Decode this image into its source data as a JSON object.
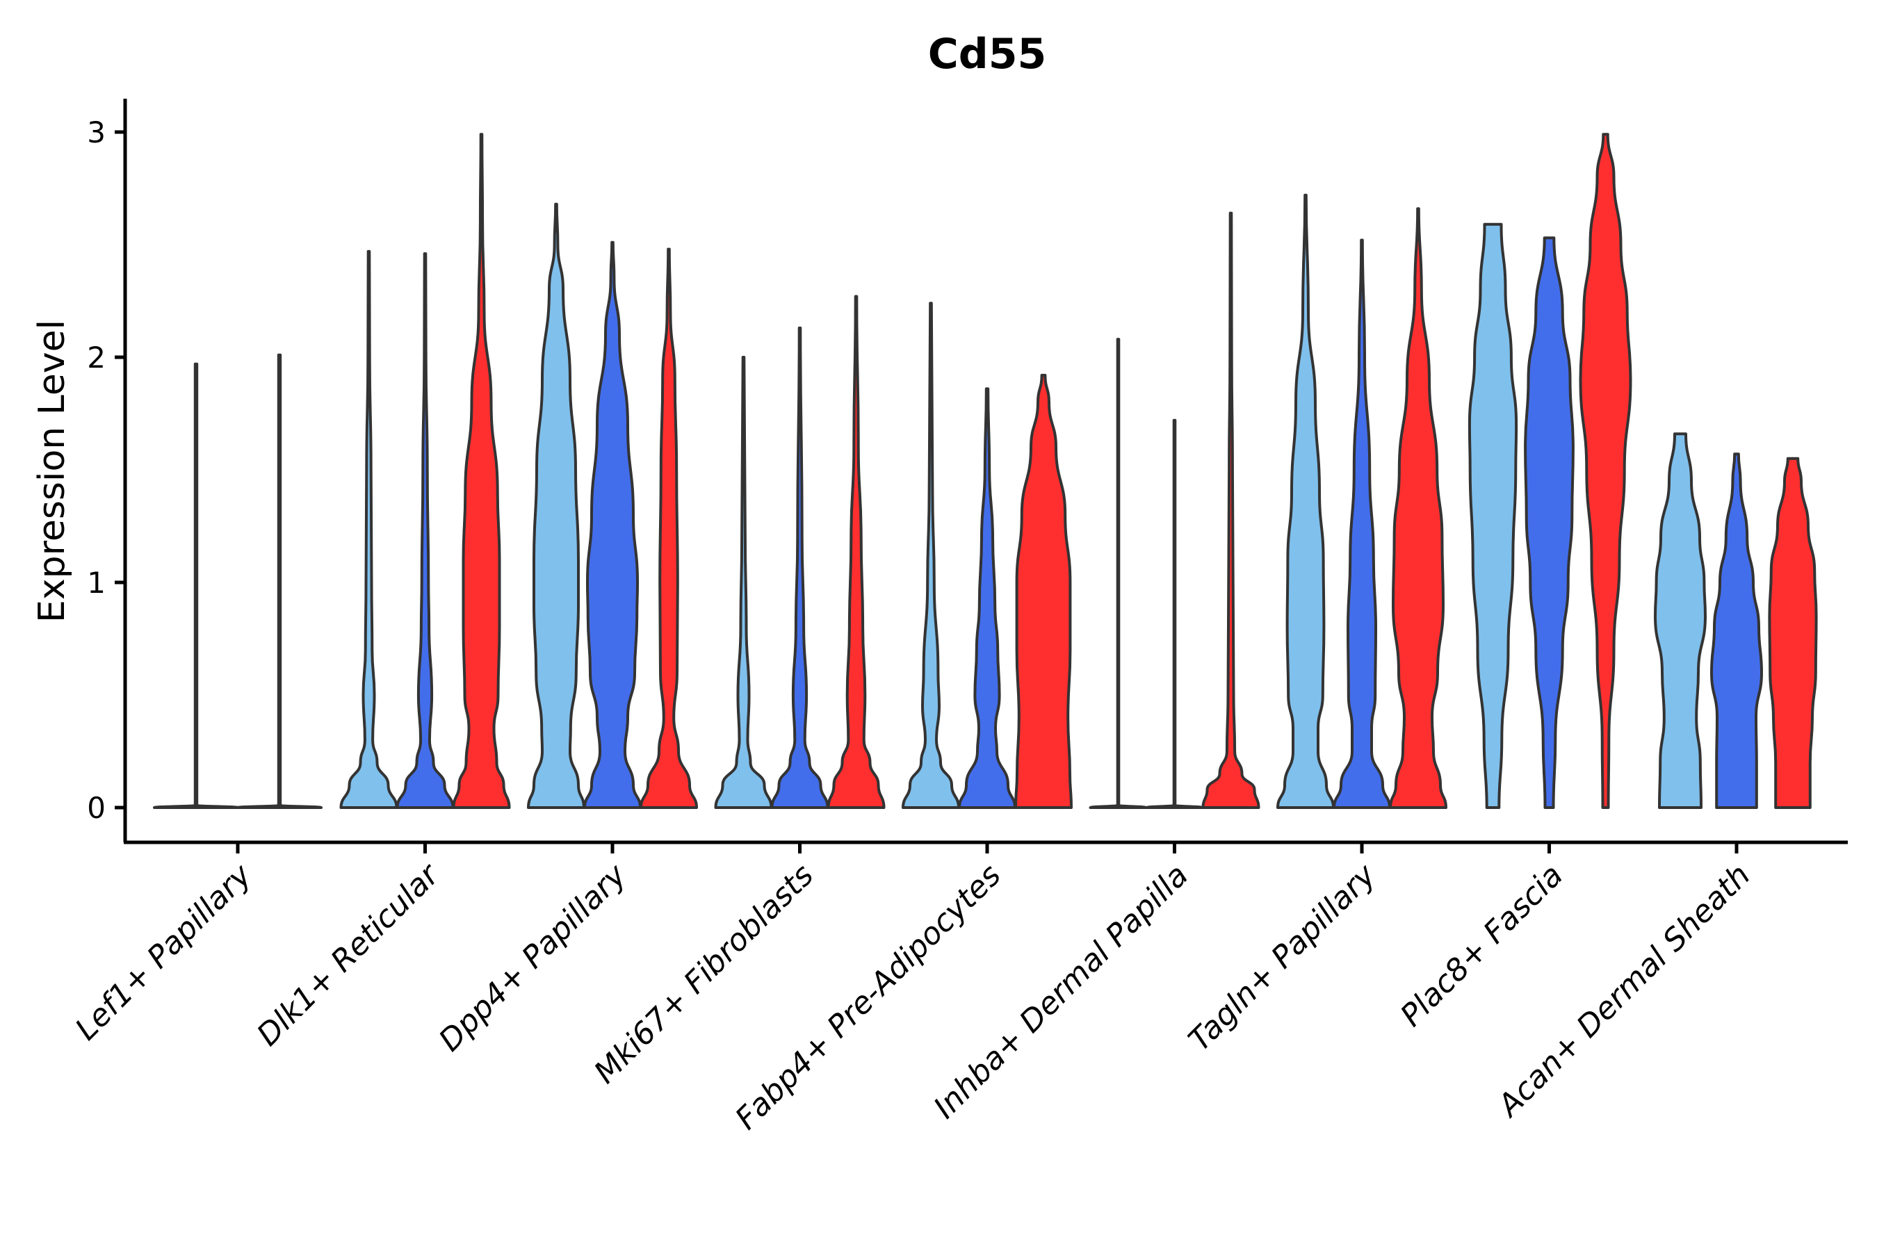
{
  "chart_data": {
    "type": "violin",
    "title": "Cd55",
    "xlabel": "",
    "ylabel": "Expression Level",
    "ylim": [
      -0.15,
      3.15
    ],
    "yticks": [
      0,
      1,
      2,
      3
    ],
    "ytick_labels": [
      "0",
      "1",
      "2",
      "3"
    ],
    "grid": false,
    "legend": "none",
    "series_colors": {
      "group1": "#80C0EC",
      "group2": "#436EEB",
      "group3": "#FF2F30",
      "flat": "#FFFFFF",
      "outline": "#333333"
    },
    "categories": [
      "Lef1+ Papillary",
      "Dlk1+ Reticular",
      "Dpp4+ Papillary",
      "Mki67+ Fibroblasts",
      "Fabp4+ Pre-Adipocytes",
      "Inhba+ Dermal Papilla",
      "Tagln+ Papillary",
      "Plac8+ Fascia",
      "Acan+ Dermal Sheath"
    ],
    "violins": [
      [
        {
          "series": "flat",
          "max": 1.97,
          "profile": [
            [
              0,
              1
            ],
            [
              0.01,
              0.02
            ],
            [
              1.97,
              0.02
            ]
          ]
        },
        {
          "series": "flat",
          "max": 2.01,
          "profile": [
            [
              0,
              1
            ],
            [
              0.01,
              0.02
            ],
            [
              2.01,
              0.02
            ]
          ]
        }
      ],
      [
        {
          "series": "group1",
          "max": 2.47,
          "profile": [
            [
              0,
              1
            ],
            [
              0.1,
              0.7
            ],
            [
              0.2,
              0.3
            ],
            [
              0.3,
              0.14
            ],
            [
              0.5,
              0.2
            ],
            [
              0.7,
              0.12
            ],
            [
              1.0,
              0.1
            ],
            [
              1.5,
              0.08
            ],
            [
              2.0,
              0.03
            ],
            [
              2.47,
              0.02
            ]
          ]
        },
        {
          "series": "group2",
          "max": 2.46,
          "profile": [
            [
              0,
              1
            ],
            [
              0.1,
              0.7
            ],
            [
              0.2,
              0.3
            ],
            [
              0.3,
              0.16
            ],
            [
              0.5,
              0.24
            ],
            [
              0.8,
              0.14
            ],
            [
              1.0,
              0.12
            ],
            [
              1.5,
              0.08
            ],
            [
              2.0,
              0.03
            ],
            [
              2.46,
              0.02
            ]
          ]
        },
        {
          "series": "group3",
          "max": 2.99,
          "profile": [
            [
              0,
              1
            ],
            [
              0.1,
              0.8
            ],
            [
              0.2,
              0.55
            ],
            [
              0.35,
              0.45
            ],
            [
              0.5,
              0.6
            ],
            [
              0.8,
              0.65
            ],
            [
              1.1,
              0.65
            ],
            [
              1.4,
              0.58
            ],
            [
              1.8,
              0.35
            ],
            [
              2.2,
              0.1
            ],
            [
              2.6,
              0.04
            ],
            [
              2.99,
              0.02
            ]
          ]
        }
      ],
      [
        {
          "series": "group1",
          "max": 2.68,
          "profile": [
            [
              0,
              1
            ],
            [
              0.1,
              0.8
            ],
            [
              0.25,
              0.5
            ],
            [
              0.35,
              0.52
            ],
            [
              0.6,
              0.72
            ],
            [
              0.9,
              0.8
            ],
            [
              1.1,
              0.8
            ],
            [
              1.5,
              0.7
            ],
            [
              1.9,
              0.5
            ],
            [
              2.3,
              0.25
            ],
            [
              2.5,
              0.06
            ],
            [
              2.68,
              0.02
            ]
          ]
        },
        {
          "series": "group2",
          "max": 2.51,
          "profile": [
            [
              0,
              1
            ],
            [
              0.1,
              0.75
            ],
            [
              0.25,
              0.45
            ],
            [
              0.4,
              0.55
            ],
            [
              0.6,
              0.8
            ],
            [
              0.85,
              0.88
            ],
            [
              1.0,
              0.9
            ],
            [
              1.3,
              0.75
            ],
            [
              1.7,
              0.55
            ],
            [
              2.1,
              0.25
            ],
            [
              2.35,
              0.06
            ],
            [
              2.51,
              0.02
            ]
          ]
        },
        {
          "series": "group3",
          "max": 2.48,
          "profile": [
            [
              0,
              1
            ],
            [
              0.1,
              0.75
            ],
            [
              0.25,
              0.35
            ],
            [
              0.4,
              0.18
            ],
            [
              0.6,
              0.3
            ],
            [
              1.0,
              0.32
            ],
            [
              1.5,
              0.28
            ],
            [
              1.9,
              0.22
            ],
            [
              2.2,
              0.06
            ],
            [
              2.48,
              0.02
            ]
          ]
        }
      ],
      [
        {
          "series": "group1",
          "max": 2.0,
          "profile": [
            [
              0,
              1
            ],
            [
              0.1,
              0.75
            ],
            [
              0.2,
              0.25
            ],
            [
              0.3,
              0.15
            ],
            [
              0.5,
              0.2
            ],
            [
              0.8,
              0.1
            ],
            [
              1.2,
              0.06
            ],
            [
              2.0,
              0.02
            ]
          ]
        },
        {
          "series": "group2",
          "max": 2.13,
          "profile": [
            [
              0,
              1
            ],
            [
              0.1,
              0.75
            ],
            [
              0.2,
              0.35
            ],
            [
              0.3,
              0.18
            ],
            [
              0.5,
              0.24
            ],
            [
              0.8,
              0.14
            ],
            [
              1.2,
              0.08
            ],
            [
              2.13,
              0.02
            ]
          ]
        },
        {
          "series": "group3",
          "max": 2.27,
          "profile": [
            [
              0,
              1
            ],
            [
              0.1,
              0.8
            ],
            [
              0.2,
              0.5
            ],
            [
              0.3,
              0.28
            ],
            [
              0.5,
              0.32
            ],
            [
              0.8,
              0.24
            ],
            [
              1.2,
              0.18
            ],
            [
              1.6,
              0.08
            ],
            [
              2.27,
              0.02
            ]
          ]
        }
      ],
      [
        {
          "series": "group1",
          "max": 2.24,
          "profile": [
            [
              0,
              1
            ],
            [
              0.1,
              0.75
            ],
            [
              0.2,
              0.35
            ],
            [
              0.3,
              0.2
            ],
            [
              0.45,
              0.3
            ],
            [
              0.6,
              0.26
            ],
            [
              1.0,
              0.12
            ],
            [
              1.4,
              0.06
            ],
            [
              2.24,
              0.02
            ]
          ]
        },
        {
          "series": "group2",
          "max": 1.86,
          "profile": [
            [
              0,
              1
            ],
            [
              0.1,
              0.75
            ],
            [
              0.25,
              0.35
            ],
            [
              0.35,
              0.3
            ],
            [
              0.5,
              0.44
            ],
            [
              0.7,
              0.38
            ],
            [
              0.9,
              0.28
            ],
            [
              1.2,
              0.2
            ],
            [
              1.5,
              0.08
            ],
            [
              1.86,
              0.03
            ]
          ]
        },
        {
          "series": "group3",
          "max": 1.92,
          "profile": [
            [
              0,
              1
            ],
            [
              0.15,
              0.95
            ],
            [
              0.4,
              0.88
            ],
            [
              0.7,
              0.96
            ],
            [
              1.0,
              0.96
            ],
            [
              1.3,
              0.78
            ],
            [
              1.6,
              0.45
            ],
            [
              1.8,
              0.2
            ],
            [
              1.92,
              0.06
            ]
          ]
        }
      ],
      [
        {
          "series": "flat",
          "max": 2.08,
          "profile": [
            [
              0,
              1
            ],
            [
              0.01,
              0.02
            ],
            [
              2.08,
              0.02
            ]
          ]
        },
        {
          "series": "flat",
          "max": 1.72,
          "profile": [
            [
              0,
              1
            ],
            [
              0.01,
              0.02
            ],
            [
              1.72,
              0.02
            ]
          ]
        },
        {
          "series": "group3",
          "max": 2.64,
          "profile": [
            [
              0,
              1
            ],
            [
              0.08,
              0.85
            ],
            [
              0.15,
              0.4
            ],
            [
              0.25,
              0.14
            ],
            [
              0.5,
              0.1
            ],
            [
              1.0,
              0.08
            ],
            [
              1.5,
              0.06
            ],
            [
              2.0,
              0.03
            ],
            [
              2.64,
              0.02
            ]
          ]
        }
      ],
      [
        {
          "series": "group1",
          "max": 2.72,
          "profile": [
            [
              0,
              1
            ],
            [
              0.1,
              0.75
            ],
            [
              0.25,
              0.45
            ],
            [
              0.35,
              0.45
            ],
            [
              0.5,
              0.62
            ],
            [
              0.8,
              0.66
            ],
            [
              1.1,
              0.64
            ],
            [
              1.4,
              0.5
            ],
            [
              1.8,
              0.35
            ],
            [
              2.2,
              0.1
            ],
            [
              2.72,
              0.02
            ]
          ]
        },
        {
          "series": "group2",
          "max": 2.52,
          "profile": [
            [
              0,
              1
            ],
            [
              0.1,
              0.75
            ],
            [
              0.25,
              0.35
            ],
            [
              0.35,
              0.35
            ],
            [
              0.5,
              0.48
            ],
            [
              0.8,
              0.5
            ],
            [
              1.1,
              0.42
            ],
            [
              1.5,
              0.28
            ],
            [
              2.0,
              0.1
            ],
            [
              2.52,
              0.02
            ]
          ]
        },
        {
          "series": "group3",
          "max": 2.66,
          "profile": [
            [
              0,
              1
            ],
            [
              0.1,
              0.8
            ],
            [
              0.25,
              0.55
            ],
            [
              0.4,
              0.5
            ],
            [
              0.6,
              0.7
            ],
            [
              0.9,
              0.9
            ],
            [
              1.2,
              0.86
            ],
            [
              1.5,
              0.68
            ],
            [
              1.9,
              0.4
            ],
            [
              2.3,
              0.12
            ],
            [
              2.66,
              0.02
            ]
          ]
        }
      ],
      [
        {
          "series": "group1",
          "max": 2.59,
          "profile": [
            [
              0,
              0.22
            ],
            [
              0.3,
              0.32
            ],
            [
              0.7,
              0.55
            ],
            [
              1.1,
              0.72
            ],
            [
              1.5,
              0.82
            ],
            [
              1.7,
              0.84
            ],
            [
              2.0,
              0.66
            ],
            [
              2.3,
              0.45
            ],
            [
              2.59,
              0.3
            ]
          ]
        },
        {
          "series": "group2",
          "max": 2.53,
          "profile": [
            [
              0,
              0.15
            ],
            [
              0.3,
              0.22
            ],
            [
              0.7,
              0.48
            ],
            [
              1.0,
              0.68
            ],
            [
              1.3,
              0.82
            ],
            [
              1.6,
              0.86
            ],
            [
              1.9,
              0.75
            ],
            [
              2.2,
              0.48
            ],
            [
              2.53,
              0.17
            ]
          ]
        },
        {
          "series": "group3",
          "max": 2.99,
          "profile": [
            [
              0,
              0.1
            ],
            [
              0.3,
              0.12
            ],
            [
              0.7,
              0.3
            ],
            [
              1.1,
              0.5
            ],
            [
              1.5,
              0.68
            ],
            [
              1.9,
              0.9
            ],
            [
              2.2,
              0.78
            ],
            [
              2.5,
              0.55
            ],
            [
              2.8,
              0.3
            ],
            [
              2.99,
              0.08
            ]
          ]
        }
      ],
      [
        {
          "series": "group1",
          "max": 1.66,
          "profile": [
            [
              0,
              0.75
            ],
            [
              0.2,
              0.72
            ],
            [
              0.4,
              0.58
            ],
            [
              0.6,
              0.65
            ],
            [
              0.85,
              0.9
            ],
            [
              1.0,
              0.86
            ],
            [
              1.2,
              0.7
            ],
            [
              1.45,
              0.4
            ],
            [
              1.66,
              0.2
            ]
          ]
        },
        {
          "series": "group2",
          "max": 1.57,
          "profile": [
            [
              0,
              0.72
            ],
            [
              0.2,
              0.72
            ],
            [
              0.4,
              0.7
            ],
            [
              0.6,
              0.9
            ],
            [
              0.8,
              0.8
            ],
            [
              1.0,
              0.6
            ],
            [
              1.2,
              0.38
            ],
            [
              1.45,
              0.14
            ],
            [
              1.57,
              0.07
            ]
          ]
        },
        {
          "series": "group3",
          "max": 1.55,
          "profile": [
            [
              0,
              0.62
            ],
            [
              0.2,
              0.62
            ],
            [
              0.4,
              0.7
            ],
            [
              0.6,
              0.82
            ],
            [
              0.85,
              0.84
            ],
            [
              1.05,
              0.78
            ],
            [
              1.25,
              0.55
            ],
            [
              1.45,
              0.3
            ],
            [
              1.55,
              0.18
            ]
          ]
        }
      ]
    ]
  }
}
